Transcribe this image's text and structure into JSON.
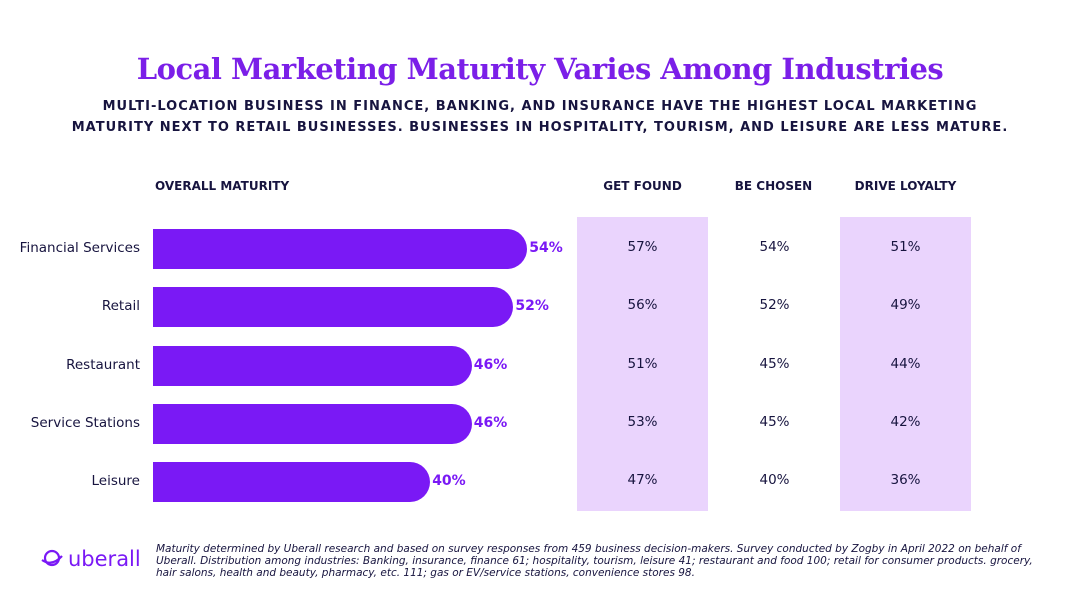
{
  "header": {
    "title": "Local Marketing Maturity Varies Among Industries",
    "subtitle": "MULTI-LOCATION BUSINESS IN FINANCE, BANKING, AND INSURANCE HAVE THE HIGHEST LOCAL MARKETING MATURITY NEXT TO RETAIL BUSINESSES. BUSINESSES IN HOSPITALITY, TOURISM, AND LEISURE ARE LESS MATURE."
  },
  "chart_data": {
    "type": "bar",
    "orientation": "horizontal",
    "title": "OVERALL MATURITY",
    "categories": [
      "Financial Services",
      "Retail",
      "Restaurant",
      "Service Stations",
      "Leisure"
    ],
    "values": [
      54,
      52,
      46,
      46,
      40
    ],
    "value_labels": [
      "54%",
      "52%",
      "46%",
      "46%",
      "40%"
    ],
    "unit": "%",
    "bar_color": "#7a19f5",
    "table": {
      "columns": [
        "GET FOUND",
        "BE CHOSEN",
        "DRIVE LOYALTY"
      ],
      "rows": [
        [
          "57%",
          "54%",
          "51%"
        ],
        [
          "56%",
          "52%",
          "49%"
        ],
        [
          "51%",
          "45%",
          "44%"
        ],
        [
          "53%",
          "45%",
          "42%"
        ],
        [
          "47%",
          "40%",
          "36%"
        ]
      ],
      "highlight_color": "#ead4fd"
    }
  },
  "footer": {
    "logo": "uberall",
    "note": "Maturity determined by Uberall research and based on survey responses from 459 business decision-makers. Survey conducted by Zogby in April 2022 on behalf of Uberall. Distribution among industries: Banking, insurance, finance 61; hospitality, tourism, leisure 41; restaurant and food 100; retail for consumer products. grocery, hair salons, health and beauty, pharmacy, etc. 111; gas or EV/service stations, convenience stores 98."
  }
}
